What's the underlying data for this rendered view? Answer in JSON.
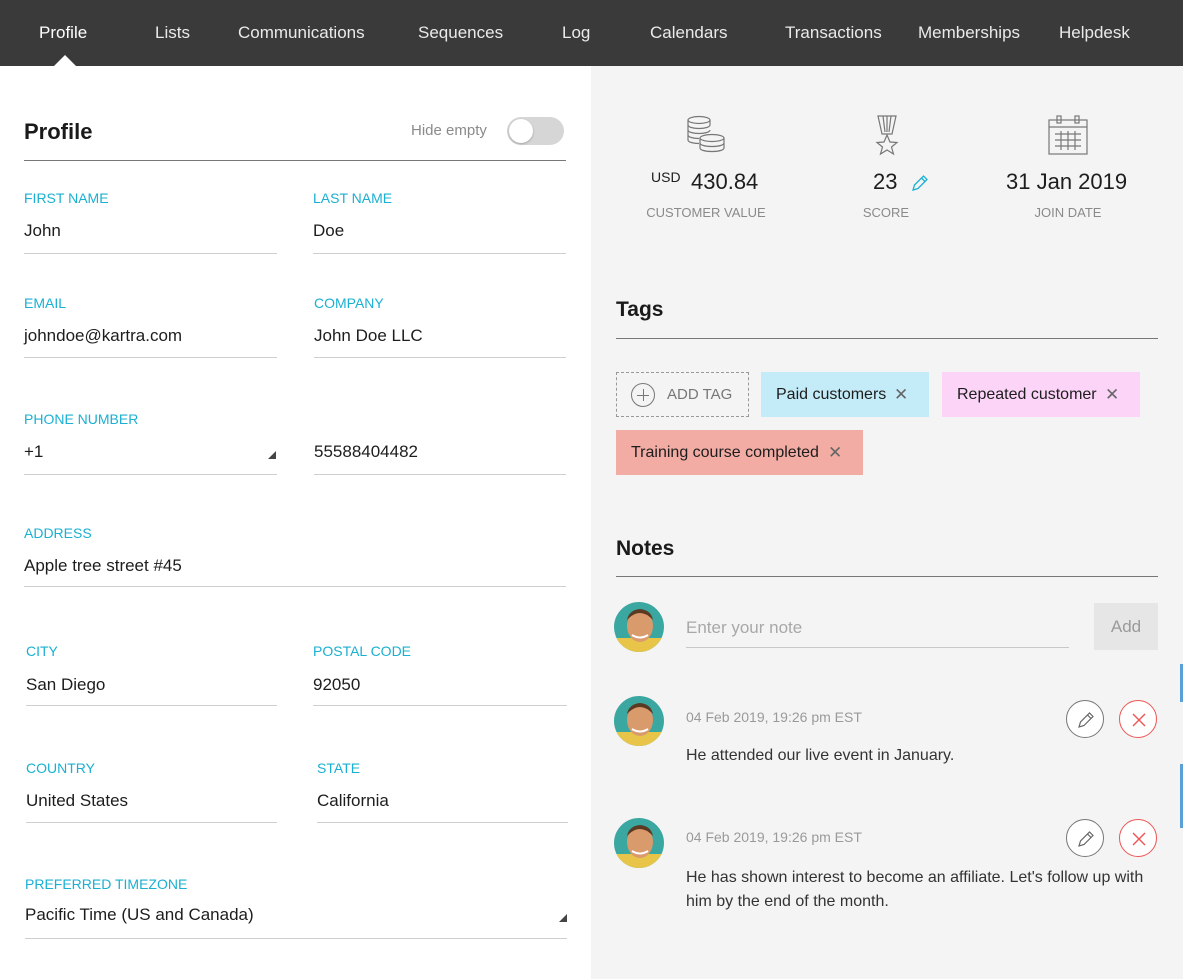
{
  "nav": {
    "items": [
      {
        "label": "Profile",
        "active": true
      },
      {
        "label": "Lists"
      },
      {
        "label": "Communications"
      },
      {
        "label": "Sequences"
      },
      {
        "label": "Log"
      },
      {
        "label": "Calendars"
      },
      {
        "label": "Transactions"
      },
      {
        "label": "Memberships"
      },
      {
        "label": "Helpdesk"
      }
    ]
  },
  "profile": {
    "title": "Profile",
    "hide_empty_label": "Hide empty",
    "hide_empty_on": false,
    "fields": {
      "first_name": {
        "label": "FIRST NAME",
        "value": "John"
      },
      "last_name": {
        "label": "LAST NAME",
        "value": "Doe"
      },
      "email": {
        "label": "EMAIL",
        "value": "johndoe@kartra.com"
      },
      "company": {
        "label": "COMPANY",
        "value": "John Doe LLC"
      },
      "phone": {
        "label": "PHONE NUMBER",
        "code": "+1",
        "number": "55588404482"
      },
      "address": {
        "label": "ADDRESS",
        "value": "Apple tree street #45"
      },
      "city": {
        "label": "CITY",
        "value": "San Diego"
      },
      "postal_code": {
        "label": "POSTAL CODE",
        "value": "92050"
      },
      "country": {
        "label": "COUNTRY",
        "value": "United States"
      },
      "state": {
        "label": "STATE",
        "value": "California"
      },
      "timezone": {
        "label": "PREFERRED TIMEZONE",
        "value": "Pacific Time (US and Canada)"
      }
    }
  },
  "stats": {
    "customer_value": {
      "currency": "USD",
      "value": "430.84",
      "label": "CUSTOMER VALUE",
      "icon": "coins-icon"
    },
    "score": {
      "value": "23",
      "label": "SCORE",
      "icon": "medal-icon"
    },
    "join_date": {
      "value": "31 Jan 2019",
      "label": "JOIN DATE",
      "icon": "calendar-icon"
    }
  },
  "tags": {
    "title": "Tags",
    "add_label": "ADD TAG",
    "items": [
      {
        "label": "Paid customers",
        "color": "#c4ecf8"
      },
      {
        "label": "Repeated customer",
        "color": "#fbd4f8"
      },
      {
        "label": "Training course completed",
        "color": "#f2aca4"
      }
    ]
  },
  "notes": {
    "title": "Notes",
    "input_placeholder": "Enter your note",
    "add_label": "Add",
    "items": [
      {
        "time": "04 Feb 2019, 19:26 pm EST",
        "text": "He attended our live event in January."
      },
      {
        "time": "04 Feb 2019, 19:26 pm EST",
        "text": "He has shown interest to become an affiliate. Let's follow up with him by the end of the month."
      }
    ]
  },
  "colors": {
    "accent": "#1ab0d2",
    "nav_bg": "#3a3a3a",
    "delete": "#ee5555"
  }
}
